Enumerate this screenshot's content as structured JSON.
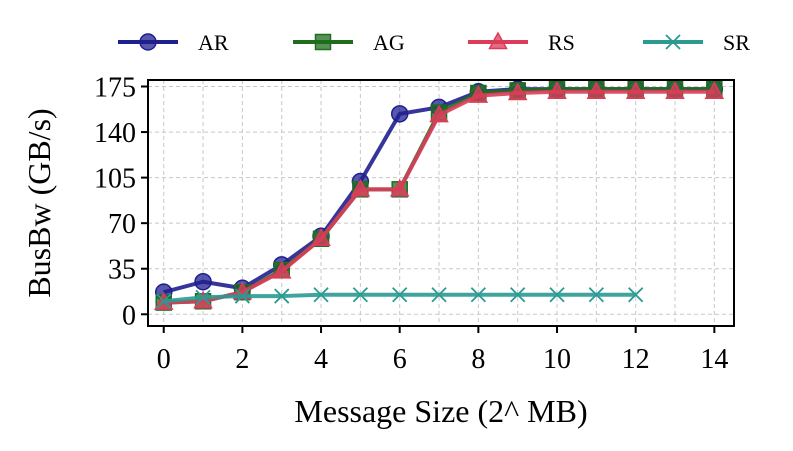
{
  "chart_data": {
    "type": "line",
    "title": "",
    "xlabel": "Message Size (2^ MB)",
    "ylabel": "BusBw (GB/s)",
    "xlim": [
      -0.4,
      14.5
    ],
    "ylim": [
      -9,
      180
    ],
    "x_ticks": [
      0,
      2,
      4,
      6,
      8,
      10,
      12,
      14
    ],
    "y_ticks": [
      0,
      35,
      70,
      105,
      140,
      175
    ],
    "grid": true,
    "legend_position": "top",
    "series": [
      {
        "name": "AR",
        "color": "#1f1f8f",
        "marker": "circle",
        "x": [
          0,
          1,
          2,
          3,
          4,
          5,
          6,
          7,
          8,
          9,
          10,
          11,
          12,
          13,
          14
        ],
        "values": [
          17,
          25,
          20,
          38,
          60,
          102,
          154,
          159,
          171,
          173,
          173,
          173,
          173,
          173,
          173
        ]
      },
      {
        "name": "AG",
        "color": "#1e6e1e",
        "marker": "square",
        "x": [
          0,
          1,
          2,
          3,
          4,
          5,
          6,
          7,
          8,
          9,
          10,
          11,
          12,
          13,
          14
        ],
        "values": [
          9,
          10,
          17,
          34,
          58,
          96,
          96,
          155,
          170,
          172,
          173,
          173,
          173,
          173,
          173
        ]
      },
      {
        "name": "RS",
        "color": "#dc3c5a",
        "marker": "triangle",
        "x": [
          0,
          1,
          2,
          3,
          4,
          5,
          6,
          7,
          8,
          9,
          10,
          11,
          12,
          13,
          14
        ],
        "values": [
          9,
          10,
          17,
          33,
          58,
          96,
          96,
          153,
          168,
          170,
          171,
          171,
          171,
          171,
          171
        ]
      },
      {
        "name": "SR",
        "color": "#2a9a92",
        "marker": "x",
        "x": [
          0,
          1,
          2,
          3,
          4,
          5,
          6,
          7,
          8,
          9,
          10,
          11,
          12
        ],
        "values": [
          10,
          13,
          14,
          14,
          15,
          15,
          15,
          15,
          15,
          15,
          15,
          15,
          15
        ]
      }
    ]
  }
}
